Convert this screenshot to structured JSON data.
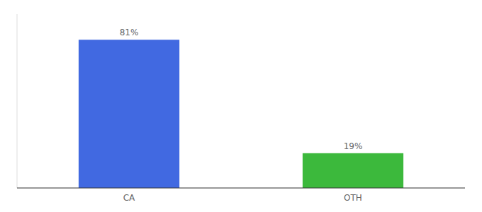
{
  "chart_data": {
    "type": "bar",
    "categories": [
      "CA",
      "OTH"
    ],
    "values": [
      81,
      19
    ],
    "value_labels": [
      "81%",
      "19%"
    ],
    "colors": [
      "#4169e1",
      "#3cb93c"
    ],
    "ylim": [
      0,
      95
    ],
    "grid": false,
    "data_labels": true,
    "tick_labels": "x"
  }
}
